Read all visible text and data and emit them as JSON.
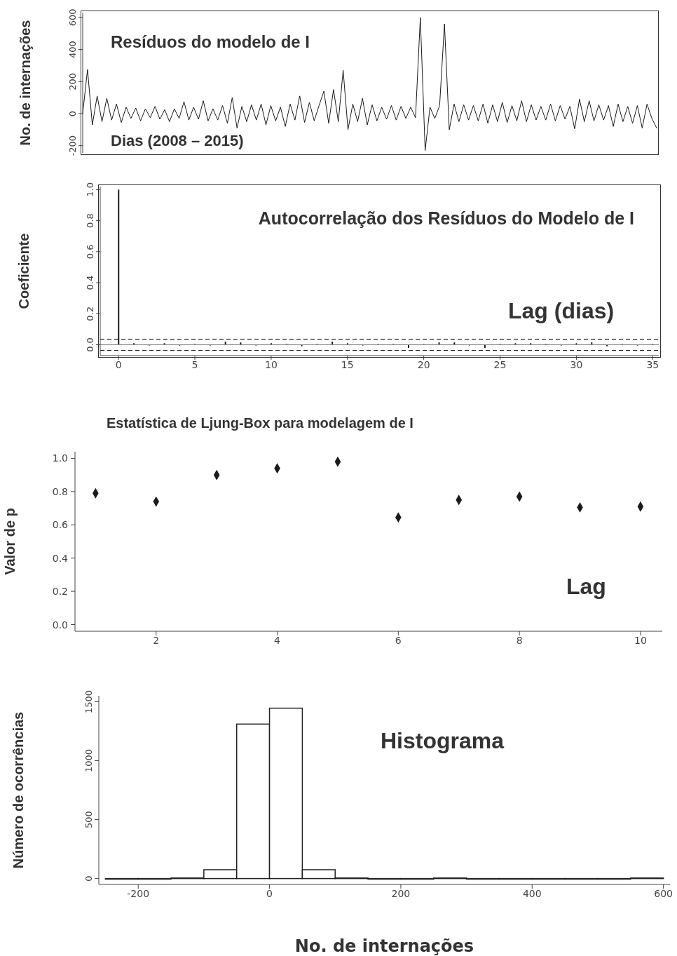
{
  "chart_data": [
    {
      "type": "line",
      "title": "Resíduos do modelo de I",
      "xlabel": "Dias (2008 – 2015)",
      "ylabel": "No. de internações",
      "tick_labels": "y",
      "categories": [
        null,
        null,
        null,
        null,
        null,
        null,
        null,
        null,
        null,
        null,
        null,
        null,
        null,
        null,
        null,
        null,
        null,
        null,
        null,
        null,
        null,
        null,
        null,
        null,
        null,
        null,
        null,
        null,
        null,
        null,
        null,
        null,
        null,
        null,
        null,
        null,
        null,
        null,
        null,
        null,
        null,
        null,
        null,
        null,
        null,
        null,
        null,
        null,
        null,
        null,
        null,
        null,
        null,
        null,
        null,
        null,
        null,
        null,
        null,
        null,
        null,
        null,
        null,
        null,
        null,
        null,
        null,
        null,
        null,
        null,
        null,
        null,
        null,
        null,
        null,
        null,
        null,
        null,
        null,
        null,
        null,
        null,
        null,
        null,
        null,
        null,
        null,
        null,
        null,
        null,
        null,
        null,
        null,
        null,
        null,
        null,
        null,
        null,
        null,
        null,
        null,
        null,
        null,
        null,
        null,
        null,
        null,
        null,
        null,
        null,
        null,
        null,
        null,
        null,
        null,
        null,
        null,
        null,
        null,
        null
      ],
      "series": [
        {
          "color": "#1a1a1a",
          "values": [
            0,
            275,
            -70,
            110,
            -50,
            95,
            -40,
            60,
            -55,
            40,
            -30,
            35,
            -45,
            30,
            -25,
            45,
            -35,
            25,
            -50,
            30,
            -30,
            75,
            -40,
            40,
            -35,
            80,
            -45,
            30,
            -40,
            50,
            -60,
            100,
            -90,
            45,
            -50,
            55,
            -40,
            60,
            -70,
            50,
            -45,
            40,
            -80,
            60,
            -40,
            110,
            -55,
            70,
            -45,
            50,
            140,
            -60,
            150,
            -50,
            270,
            -100,
            60,
            -50,
            95,
            -70,
            55,
            -45,
            40,
            -35,
            50,
            -40,
            45,
            -30,
            40,
            -25,
            600,
            -230,
            40,
            -30,
            50,
            560,
            -100,
            60,
            -50,
            55,
            -40,
            50,
            -45,
            60,
            -60,
            55,
            -50,
            70,
            -55,
            50,
            -45,
            80,
            -50,
            55,
            -40,
            45,
            -40,
            60,
            -45,
            50,
            -35,
            45,
            -95,
            90,
            -50,
            80,
            -45,
            55,
            -40,
            50,
            -80,
            60,
            -50,
            45,
            -60,
            50,
            -90,
            60,
            -30,
            -90
          ]
        }
      ],
      "ylim": [
        -245,
        630
      ],
      "yticks": [
        -200,
        0,
        200,
        400,
        600
      ],
      "marker": "none",
      "line_style": "solid"
    },
    {
      "type": "bar",
      "title": "Autocorrelação dos Resíduos do Modelo de I",
      "xlabel": "Lag (dias)",
      "ylabel": "Coeficiente",
      "x": [
        0,
        1,
        2,
        3,
        4,
        5,
        6,
        7,
        8,
        9,
        10,
        11,
        12,
        13,
        14,
        15,
        16,
        17,
        18,
        19,
        20,
        21,
        22,
        23,
        24,
        25,
        26,
        27,
        28,
        29,
        30,
        31,
        32,
        33,
        34,
        35
      ],
      "values": [
        1.0,
        0.01,
        -0.005,
        0.01,
        -0.005,
        0.005,
        -0.005,
        0.02,
        0.015,
        -0.005,
        0.01,
        0.005,
        -0.01,
        0.005,
        0.02,
        0.01,
        -0.005,
        0.005,
        0.005,
        -0.02,
        0.005,
        0.015,
        0.015,
        -0.005,
        -0.02,
        0.005,
        0.01,
        0.01,
        0.005,
        -0.005,
        0.01,
        0.015,
        -0.01,
        0.005,
        -0.005,
        0.005
      ],
      "color": "#1a1a1a",
      "xlim": [
        -1.2,
        35.4
      ],
      "xticks": [
        0,
        5,
        10,
        15,
        20,
        25,
        30,
        35
      ],
      "ylim": [
        -0.07,
        1.02
      ],
      "yticks": [
        {
          "value": 0,
          "label": "0.0"
        },
        {
          "value": 0.2,
          "label": "0.2"
        },
        {
          "value": 0.4,
          "label": "0.4"
        },
        {
          "value": 0.6,
          "label": "0.6"
        },
        {
          "value": 0.8,
          "label": "0.8"
        },
        {
          "value": 1,
          "label": "1.0"
        }
      ],
      "ref_lines": [
        {
          "axis": "y",
          "value": 0.036,
          "color": "#1a1a1a",
          "line_style": "dashed"
        },
        {
          "axis": "y",
          "value": -0.036,
          "color": "#1a1a1a",
          "line_style": "dashed"
        },
        {
          "axis": "y",
          "value": 0,
          "color": "#888888",
          "line_style": "solid"
        }
      ]
    },
    {
      "type": "scatter",
      "title": "Estatística de Ljung-Box para modelagem de I",
      "xlabel": "Lag",
      "ylabel": "Valor de p",
      "x": [
        1,
        2,
        3,
        4,
        5,
        6,
        7,
        8,
        9,
        10
      ],
      "values": [
        0.79,
        0.74,
        0.9,
        0.94,
        0.98,
        0.645,
        0.75,
        0.77,
        0.705,
        0.71
      ],
      "color": "#1a1a1a",
      "marker": "diamond",
      "xlim": [
        0.66,
        10.36
      ],
      "xticks": [
        2,
        4,
        6,
        8,
        10
      ],
      "ylim": [
        -0.04,
        1.04
      ],
      "yticks": [
        {
          "value": 0,
          "label": "0.0"
        },
        {
          "value": 0.2,
          "label": "0.2"
        },
        {
          "value": 0.4,
          "label": "0.4"
        },
        {
          "value": 0.6,
          "label": "0.6"
        },
        {
          "value": 0.8,
          "label": "0.8"
        },
        {
          "value": 1,
          "label": "1.0"
        }
      ]
    },
    {
      "type": "histogram",
      "title": "Histograma",
      "xlabel": "No. de internações",
      "ylabel": "Número de ocorrências",
      "bins": [
        -250,
        -200,
        -150,
        -100,
        -50,
        0,
        50,
        100,
        150,
        200,
        250,
        300,
        350,
        400,
        450,
        500,
        550,
        600
      ],
      "values": [
        0,
        0,
        5,
        75,
        1310,
        1445,
        75,
        5,
        0,
        0,
        5,
        0,
        0,
        0,
        0,
        0,
        5
      ],
      "color": "#ffffff",
      "xlim": [
        -260,
        610
      ],
      "xticks": [
        -200,
        0,
        200,
        400,
        600
      ],
      "ylim": [
        -50,
        1550
      ],
      "yticks": [
        0,
        500,
        1000,
        1500
      ]
    }
  ]
}
